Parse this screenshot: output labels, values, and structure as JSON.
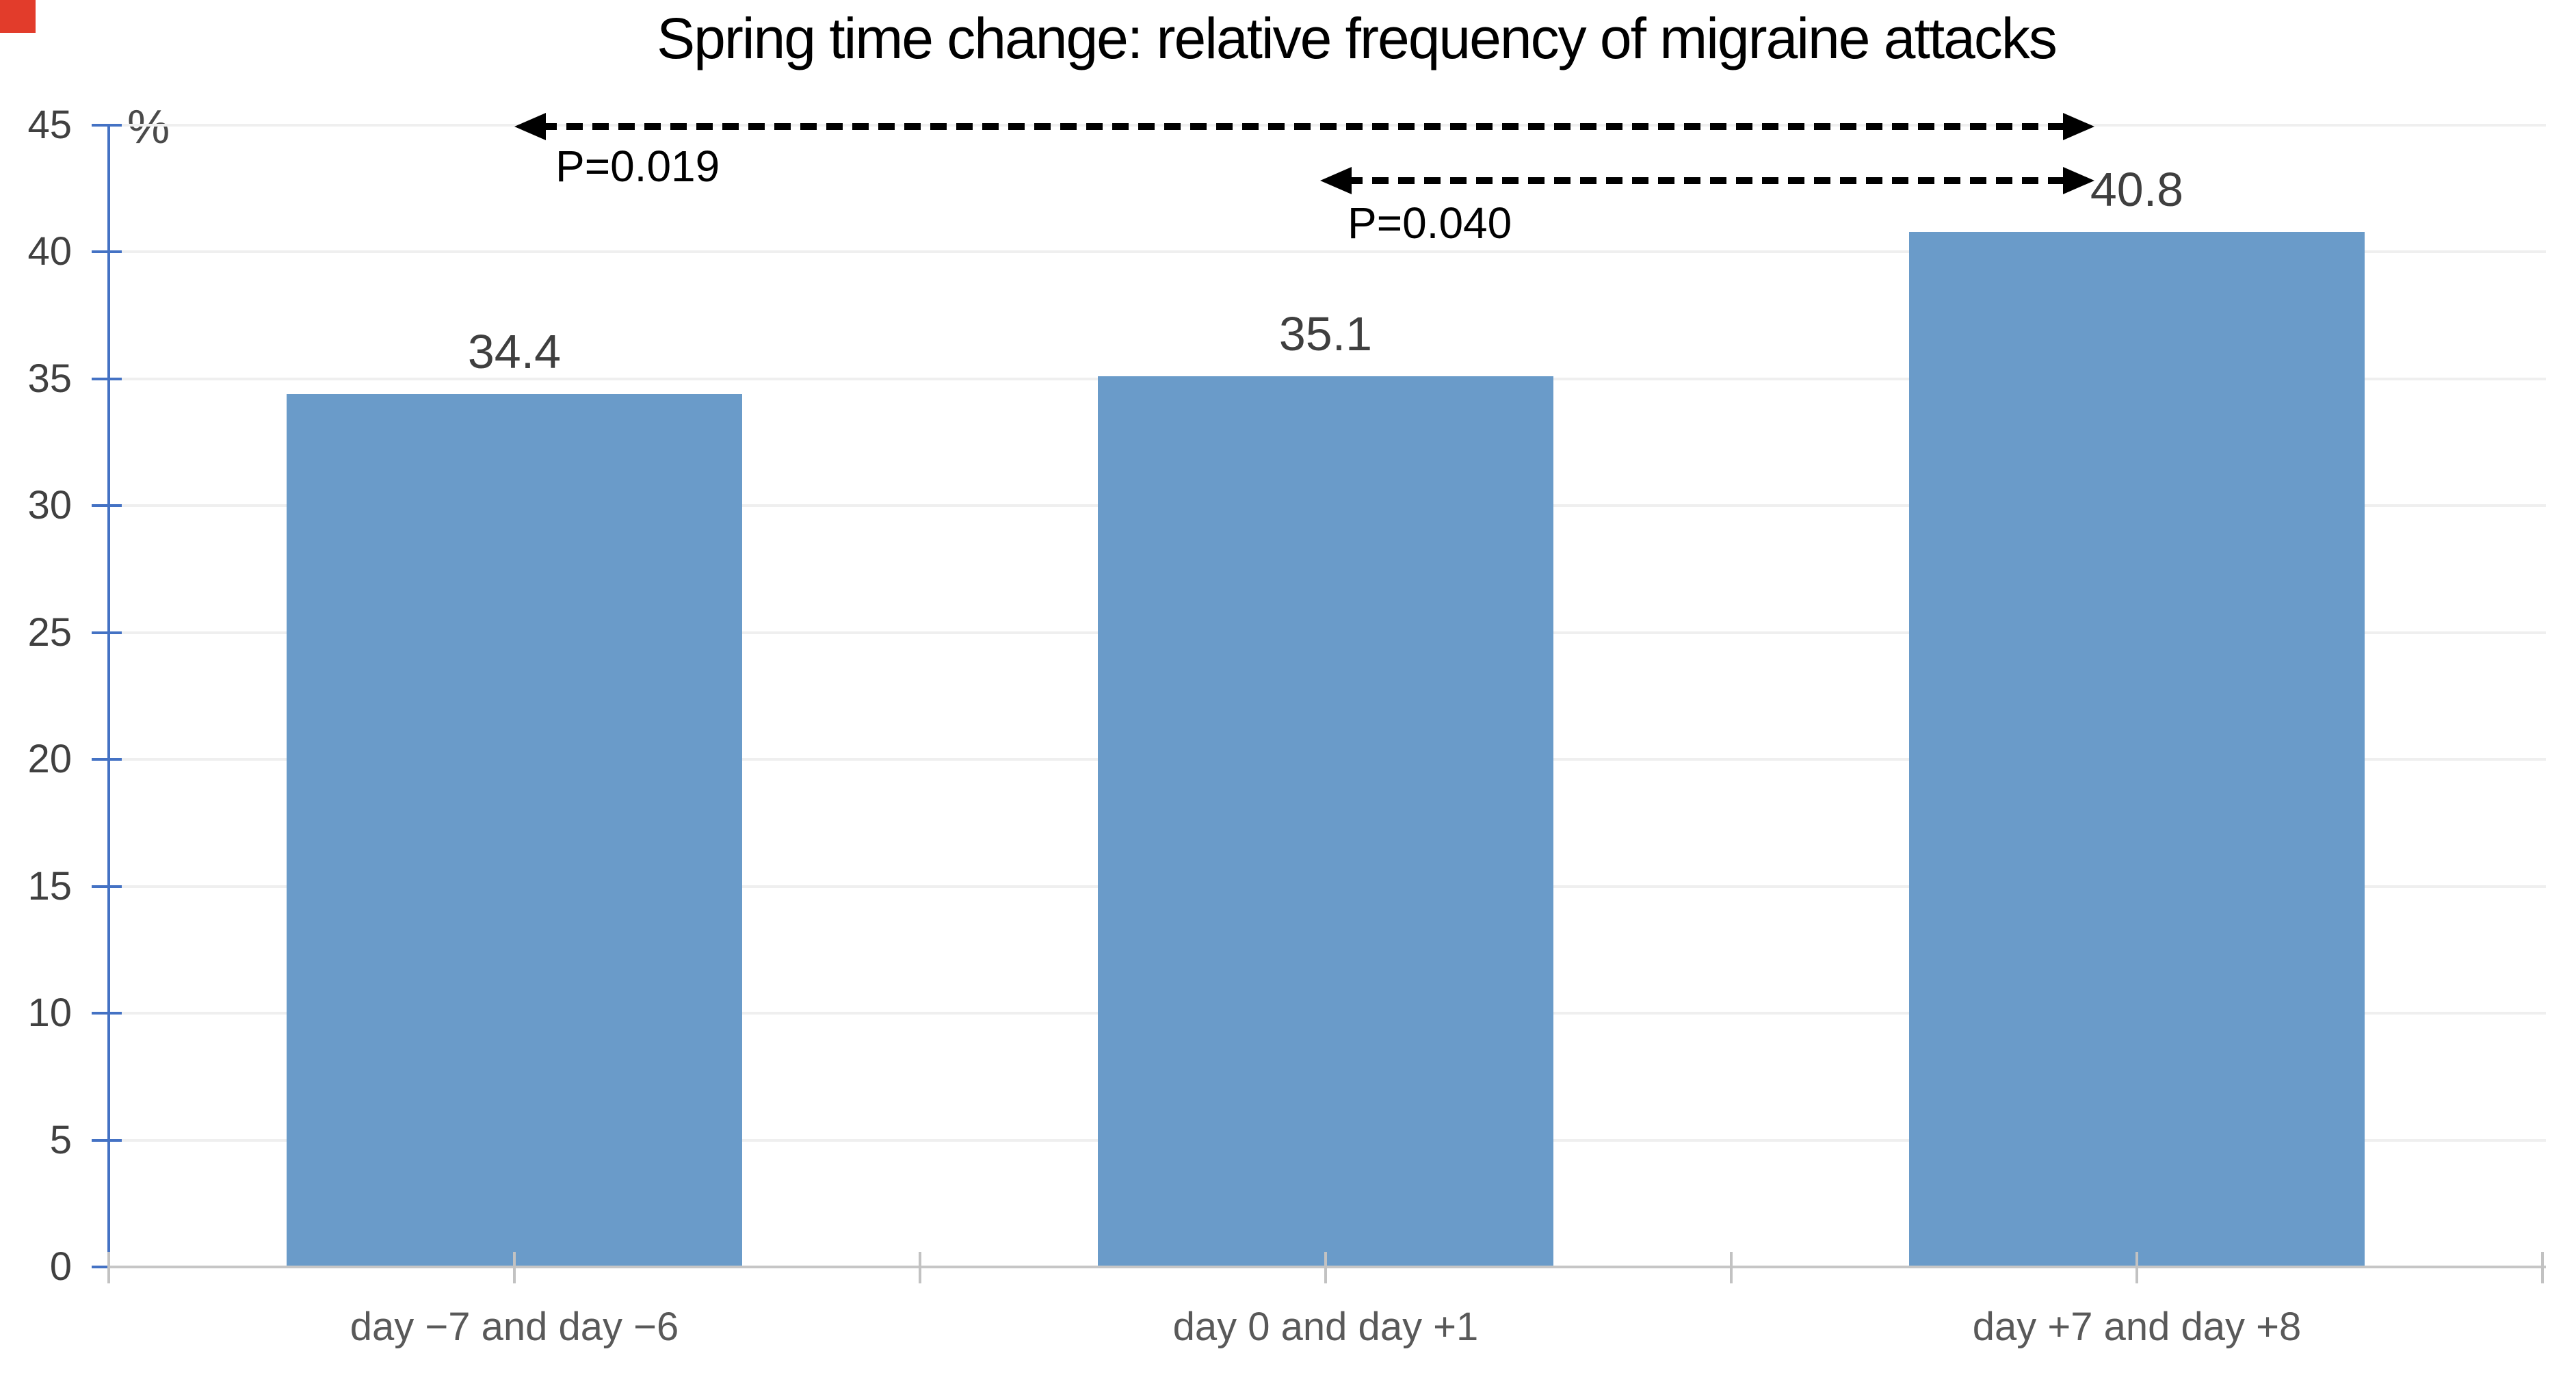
{
  "title": "Spring time change: relative frequency of migraine attacks",
  "decor": {
    "corner_marker_color": "#e23c2b"
  },
  "colors": {
    "bar": "#6a9bc9",
    "y_axis": "#4472c4",
    "x_axis": "#c6c6c6",
    "gridline": "#efefef",
    "tick_label": "#404040",
    "category_label": "#595959",
    "value_label": "#3f3f3f",
    "annotation": "#000000"
  },
  "chart_data": {
    "type": "bar",
    "title": "Spring time change: relative frequency of migraine attacks",
    "categories": [
      "day −7 and day −6",
      "day 0 and day +1",
      "day +7 and day +8"
    ],
    "values": [
      34.4,
      35.1,
      40.8
    ],
    "value_labels": [
      "34.4",
      "35.1",
      "40.8"
    ],
    "xlabel": "",
    "ylabel": "%",
    "ylim": [
      0,
      45
    ],
    "yticks": [
      0,
      5,
      10,
      15,
      20,
      25,
      30,
      35,
      40,
      45
    ],
    "grid": "horizontal",
    "legend": "none",
    "annotations": [
      {
        "label": "P=0.019",
        "from_category": "day −7 and day −6",
        "to_category": "day +7 and day +8",
        "style": "dashed-double-arrow"
      },
      {
        "label": "P=0.040",
        "from_category": "day 0 and day +1",
        "to_category": "day +7 and day +8",
        "style": "dashed-double-arrow"
      }
    ]
  }
}
